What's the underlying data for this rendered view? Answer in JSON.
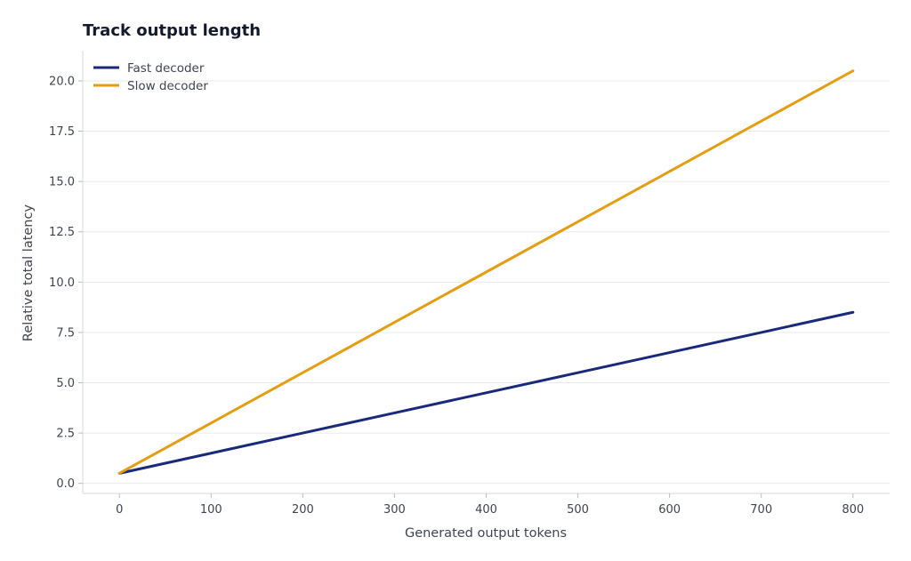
{
  "chart_data": {
    "type": "line",
    "title": "Track output length",
    "xlabel": "Generated output tokens",
    "ylabel": "Relative total latency",
    "xlim": [
      -40,
      840
    ],
    "ylim": [
      -0.5,
      21.5
    ],
    "x_ticks": [
      0,
      100,
      200,
      300,
      400,
      500,
      600,
      700,
      800
    ],
    "y_ticks": [
      0.0,
      2.5,
      5.0,
      7.5,
      10.0,
      12.5,
      15.0,
      17.5,
      20.0
    ],
    "x_tick_labels": [
      "0",
      "100",
      "200",
      "300",
      "400",
      "500",
      "600",
      "700",
      "800"
    ],
    "y_tick_labels": [
      "0.0",
      "2.5",
      "5.0",
      "7.5",
      "10.0",
      "12.5",
      "15.0",
      "17.5",
      "20.0"
    ],
    "grid": "horizontal",
    "legend_position": "top-left",
    "series": [
      {
        "name": "Fast decoder",
        "color": "#1a2a7a",
        "x": [
          0,
          100,
          200,
          300,
          400,
          500,
          600,
          700,
          800
        ],
        "y": [
          0.5,
          1.5,
          2.5,
          3.5,
          4.5,
          5.5,
          6.5,
          7.5,
          8.5
        ]
      },
      {
        "name": "Slow decoder",
        "color": "#e59d12",
        "x": [
          0,
          100,
          200,
          300,
          400,
          500,
          600,
          700,
          800
        ],
        "y": [
          0.5,
          3.0,
          5.5,
          8.0,
          10.5,
          13.0,
          15.5,
          18.0,
          20.5
        ]
      }
    ]
  }
}
